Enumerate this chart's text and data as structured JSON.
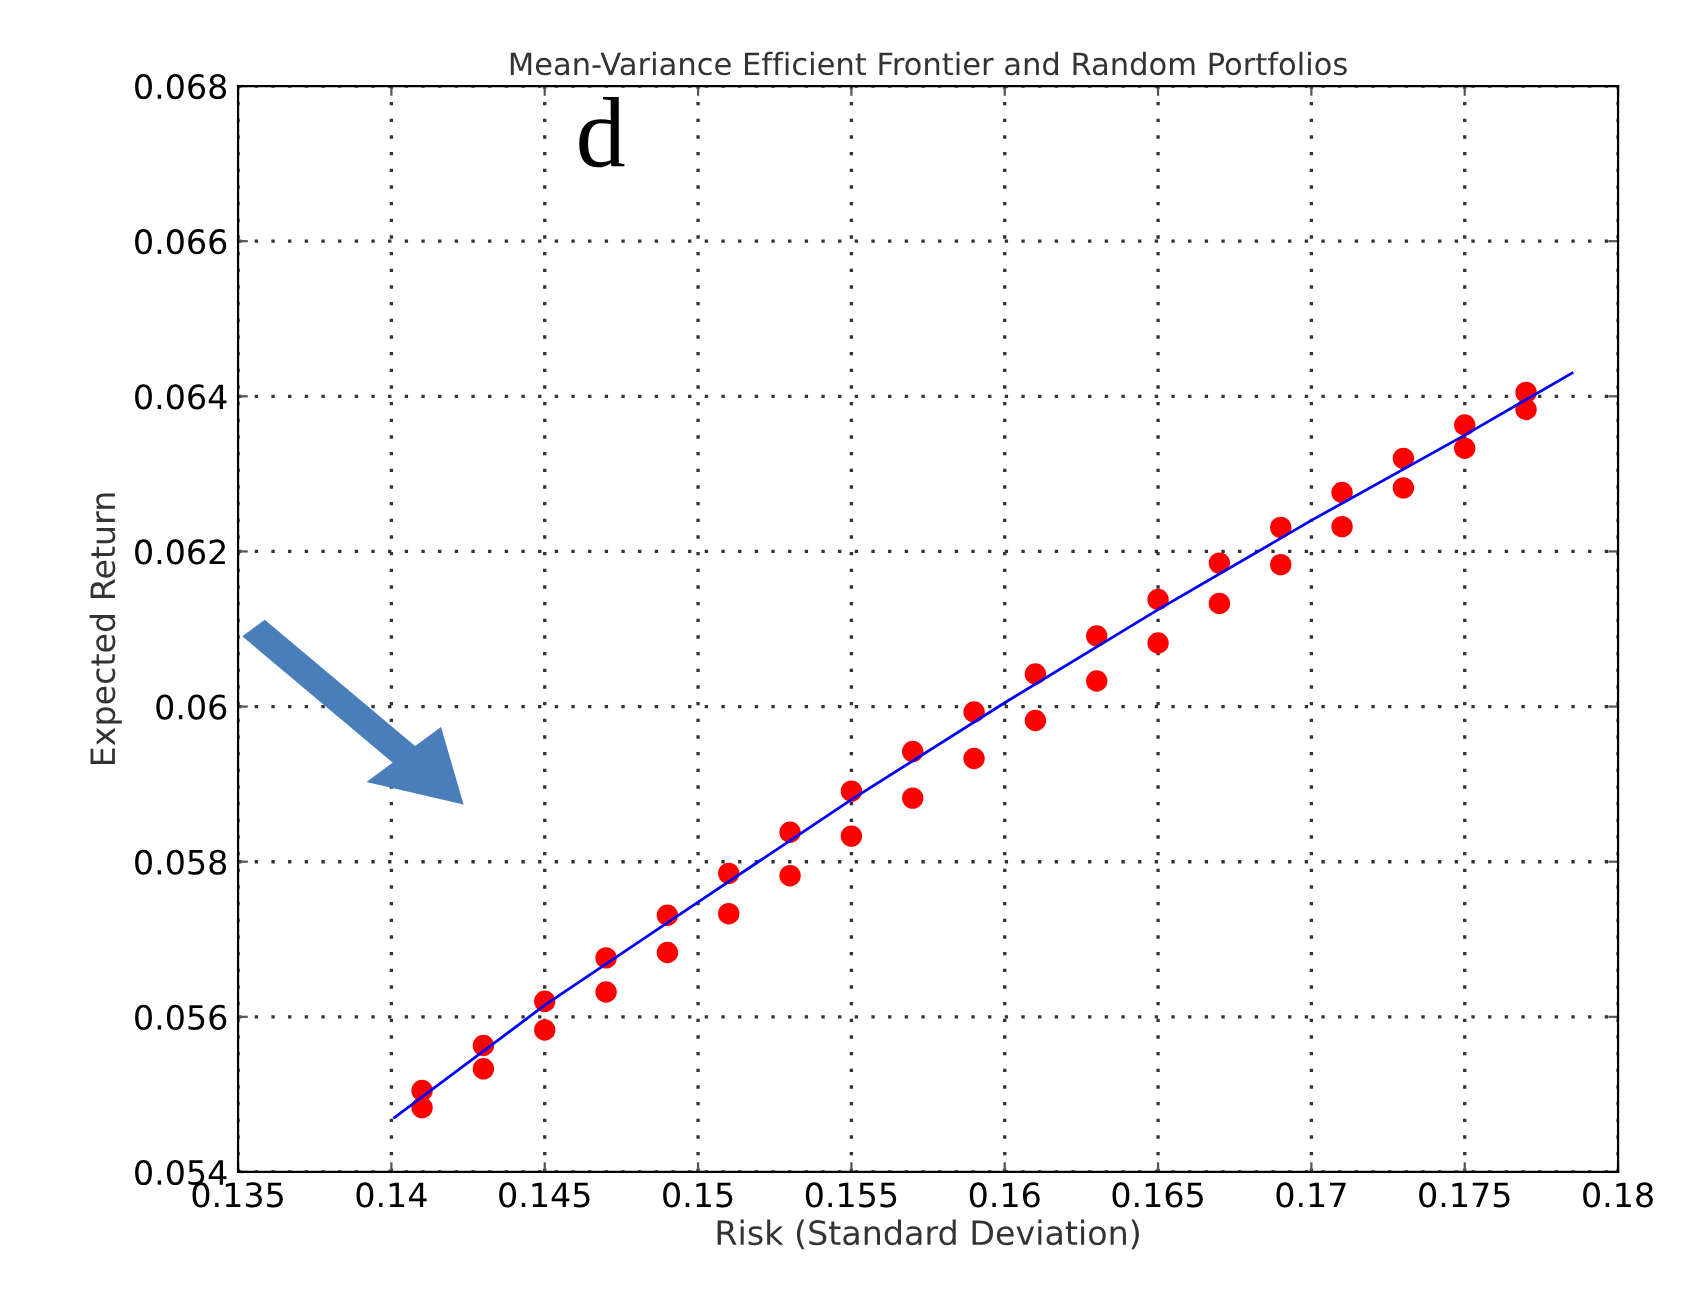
{
  "chart_data": {
    "type": "scatter",
    "title": "Mean-Variance Efficient Frontier and Random Portfolios",
    "xlabel": "Risk (Standard Deviation)",
    "ylabel": "Expected Return",
    "annotations": [
      "d"
    ],
    "xlim": [
      0.135,
      0.18
    ],
    "xticks": [
      0.135,
      0.14,
      0.145,
      0.15,
      0.155,
      0.16,
      0.165,
      0.17,
      0.175,
      0.18
    ],
    "ylim": [
      0.054,
      0.068
    ],
    "yticks": [
      0.054,
      0.056,
      0.058,
      0.06,
      0.062,
      0.064,
      0.066,
      0.068
    ],
    "grid": true,
    "marker": "circle",
    "series": [
      {
        "type": "scatter",
        "color": "#ff0000",
        "x": [
          0.141,
          0.143,
          0.145,
          0.147,
          0.149,
          0.151,
          0.153,
          0.155,
          0.157,
          0.159,
          0.161,
          0.163,
          0.165,
          0.167,
          0.169,
          0.171,
          0.173,
          0.175,
          0.177,
          0.141,
          0.143,
          0.145,
          0.147,
          0.149,
          0.151,
          0.153,
          0.155,
          0.157,
          0.159,
          0.161,
          0.163,
          0.165,
          0.167,
          0.169,
          0.171,
          0.173,
          0.175,
          0.177
        ],
        "values": [
          0.05505,
          0.05563,
          0.0562,
          0.05676,
          0.05731,
          0.05785,
          0.05838,
          0.05891,
          0.05942,
          0.05993,
          0.06042,
          0.06091,
          0.06138,
          0.06185,
          0.06231,
          0.06276,
          0.0632,
          0.06363,
          0.06405,
          0.05483,
          0.05533,
          0.05583,
          0.05632,
          0.05683,
          0.05733,
          0.05782,
          0.05833,
          0.05882,
          0.05933,
          0.05982,
          0.06033,
          0.06082,
          0.06133,
          0.06183,
          0.06232,
          0.06282,
          0.06333,
          0.06383
        ]
      },
      {
        "type": "line",
        "color": "#0000ff",
        "marker": "none",
        "line_style": "solid",
        "x": [
          0.1401,
          0.145,
          0.15,
          0.155,
          0.16,
          0.165,
          0.17,
          0.175,
          0.1785
        ],
        "values": [
          0.0547,
          0.05615,
          0.05748,
          0.0588,
          0.06005,
          0.06125,
          0.0624,
          0.0635,
          0.0643
        ]
      }
    ]
  }
}
